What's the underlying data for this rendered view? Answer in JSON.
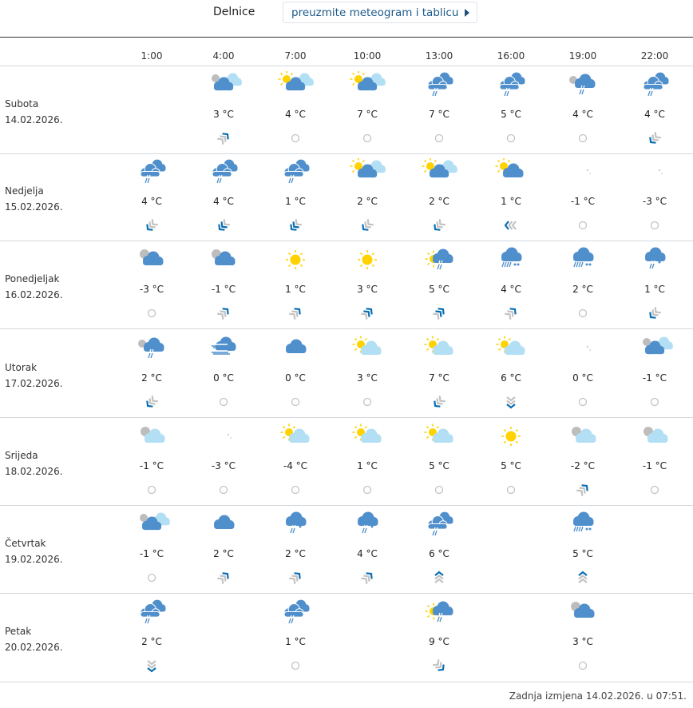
{
  "header": {
    "location": "Delnice",
    "download_button": "preuzmite meteogram i tablicu"
  },
  "colors": {
    "cloud": "#4f8fcc",
    "light_cloud": "#b3dff5",
    "sun": "#ffd200",
    "moon": "#bdbdbd",
    "wind_accent": "#0a6fb4",
    "wind_gray": "#c3c3c3"
  },
  "times": [
    "1:00",
    "4:00",
    "7:00",
    "10:00",
    "13:00",
    "16:00",
    "19:00",
    "22:00"
  ],
  "days": [
    {
      "name": "Subota",
      "date": "14.02.2026.",
      "cells": [
        null,
        {
          "icon": "moon-cloud-lightcloud",
          "temp": "3 °C",
          "wind": "ne",
          "blue": 1
        },
        {
          "icon": "sun-cloud-lightcloud",
          "temp": "4 °C",
          "wind": "calm"
        },
        {
          "icon": "sun-cloud-lightcloud",
          "temp": "7 °C",
          "wind": "calm"
        },
        {
          "icon": "rain-clouds",
          "temp": "7 °C",
          "wind": "calm"
        },
        {
          "icon": "rain-clouds",
          "temp": "5 °C",
          "wind": "calm"
        },
        {
          "icon": "moon-rain",
          "temp": "4 °C",
          "wind": "calm"
        },
        {
          "icon": "rain-clouds",
          "temp": "4 °C",
          "wind": "sw",
          "blue": 1
        }
      ]
    },
    {
      "name": "Nedjelja",
      "date": "15.02.2026.",
      "cells": [
        {
          "icon": "rain-clouds",
          "temp": "4 °C",
          "wind": "sw",
          "blue": 1
        },
        {
          "icon": "rain-clouds",
          "temp": "4 °C",
          "wind": "sw",
          "blue": 2
        },
        {
          "icon": "rain-clouds",
          "temp": "1 °C",
          "wind": "sw",
          "blue": 2
        },
        {
          "icon": "sun-cloud-lightcloud",
          "temp": "2 °C",
          "wind": "sw",
          "blue": 1
        },
        {
          "icon": "sun-cloud-lightcloud",
          "temp": "2 °C",
          "wind": "sw",
          "blue": 1
        },
        {
          "icon": "sun-cloud",
          "temp": "1 °C",
          "wind": "w",
          "blue": 1
        },
        {
          "icon": "moon",
          "temp": "-1 °C",
          "wind": "calm"
        },
        {
          "icon": "moon",
          "temp": "-3 °C",
          "wind": "calm"
        }
      ]
    },
    {
      "name": "Ponedjeljak",
      "date": "16.02.2026.",
      "cells": [
        {
          "icon": "moon-cloud",
          "temp": "-3 °C",
          "wind": "calm"
        },
        {
          "icon": "moon-cloud",
          "temp": "-1 °C",
          "wind": "ne",
          "blue": 1
        },
        {
          "icon": "sun",
          "temp": "1 °C",
          "wind": "ne",
          "blue": 1
        },
        {
          "icon": "sun",
          "temp": "3 °C",
          "wind": "ne",
          "blue": 2
        },
        {
          "icon": "sun-rain",
          "temp": "5 °C",
          "wind": "ne",
          "blue": 2
        },
        {
          "icon": "heavy-sleet",
          "temp": "4 °C",
          "wind": "ne",
          "blue": 1
        },
        {
          "icon": "heavy-sleet",
          "temp": "2 °C",
          "wind": "calm"
        },
        {
          "icon": "sleet",
          "temp": "1 °C",
          "wind": "sw",
          "blue": 1
        }
      ]
    },
    {
      "name": "Utorak",
      "date": "17.02.2026.",
      "cells": [
        {
          "icon": "moon-rain",
          "temp": "2 °C",
          "wind": "sw",
          "blue": 1
        },
        {
          "icon": "fog",
          "temp": "0 °C",
          "wind": "calm"
        },
        {
          "icon": "cloud",
          "temp": "0 °C",
          "wind": "calm"
        },
        {
          "icon": "sun-lightcloud",
          "temp": "3 °C",
          "wind": "calm"
        },
        {
          "icon": "sun-lightcloud",
          "temp": "7 °C",
          "wind": "sw",
          "blue": 1
        },
        {
          "icon": "sun-lightcloud",
          "temp": "6 °C",
          "wind": "s",
          "blue": 1
        },
        {
          "icon": "moon",
          "temp": "0 °C",
          "wind": "calm"
        },
        {
          "icon": "moon-cloud-lightcloud",
          "temp": "-1 °C",
          "wind": "calm"
        }
      ]
    },
    {
      "name": "Srijeda",
      "date": "18.02.2026.",
      "cells": [
        {
          "icon": "moon-lightcloud",
          "temp": "-1 °C",
          "wind": "calm"
        },
        {
          "icon": "moon",
          "temp": "-3 °C",
          "wind": "calm"
        },
        {
          "icon": "sun-lightcloud",
          "temp": "-4 °C",
          "wind": "calm"
        },
        {
          "icon": "sun-lightcloud",
          "temp": "1 °C",
          "wind": "calm"
        },
        {
          "icon": "sun-lightcloud",
          "temp": "5 °C",
          "wind": "calm"
        },
        {
          "icon": "sun",
          "temp": "5 °C",
          "wind": "calm"
        },
        {
          "icon": "moon-lightcloud",
          "temp": "-2 °C",
          "wind": "ne",
          "blue": 1
        },
        {
          "icon": "moon-lightcloud",
          "temp": "-1 °C",
          "wind": "calm"
        }
      ]
    },
    {
      "name": "Četvrtak",
      "date": "19.02.2026.",
      "cells": [
        {
          "icon": "moon-cloud-lightcloud",
          "temp": "-1 °C",
          "wind": "calm"
        },
        {
          "icon": "cloud",
          "temp": "2 °C",
          "wind": "ne",
          "blue": 1
        },
        {
          "icon": "sleet",
          "temp": "2 °C",
          "wind": "ne",
          "blue": 1
        },
        {
          "icon": "sleet",
          "temp": "4 °C",
          "wind": "ne",
          "blue": 1
        },
        {
          "icon": "rain-clouds",
          "temp": "6 °C",
          "wind": "n",
          "blue": 1
        },
        null,
        {
          "icon": "heavy-sleet",
          "temp": "5 °C",
          "wind": "n",
          "blue": 1
        },
        null
      ]
    },
    {
      "name": "Petak",
      "date": "20.02.2026.",
      "cells": [
        {
          "icon": "rain-clouds",
          "temp": "2 °C",
          "wind": "s",
          "blue": 1
        },
        null,
        {
          "icon": "rain-clouds",
          "temp": "1 °C",
          "wind": "calm"
        },
        null,
        {
          "icon": "sun-rain",
          "temp": "9 °C",
          "wind": "se",
          "blue": 1
        },
        null,
        {
          "icon": "moon-cloud",
          "temp": "3 °C",
          "wind": "calm"
        },
        null
      ]
    }
  ],
  "footer": {
    "last_modified": "Zadnja izmjena 14.02.2026. u 07:51."
  }
}
